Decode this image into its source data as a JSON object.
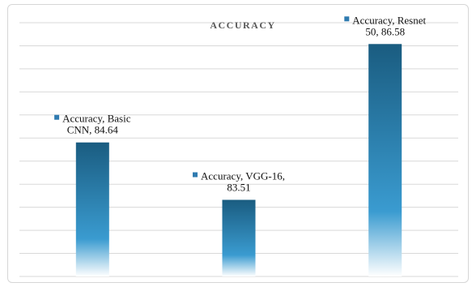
{
  "chart_data": {
    "type": "bar",
    "title": "ACCURACY",
    "categories": [
      "Basic CNN",
      "VGG-16",
      "Resnet"
    ],
    "series": [
      {
        "name": "Accuracy",
        "values": [
          84.64,
          83.51,
          86.58
        ]
      }
    ],
    "data_labels": [
      [
        "Accuracy, Basic",
        "CNN, 84.64"
      ],
      [
        "Accuracy, VGG-16,",
        "83.51"
      ],
      [
        "Accuracy, Resnet",
        "50, 86.58"
      ]
    ],
    "ylim": [
      82.0,
      87.0
    ],
    "grid": true,
    "colors": {
      "bar_top": "#1a5c80",
      "bar_mid": "#3a9bd0",
      "bar_bottom": "#ffffff",
      "legend_key": "#2f7bb0",
      "grid": "#d9d9d9"
    }
  }
}
